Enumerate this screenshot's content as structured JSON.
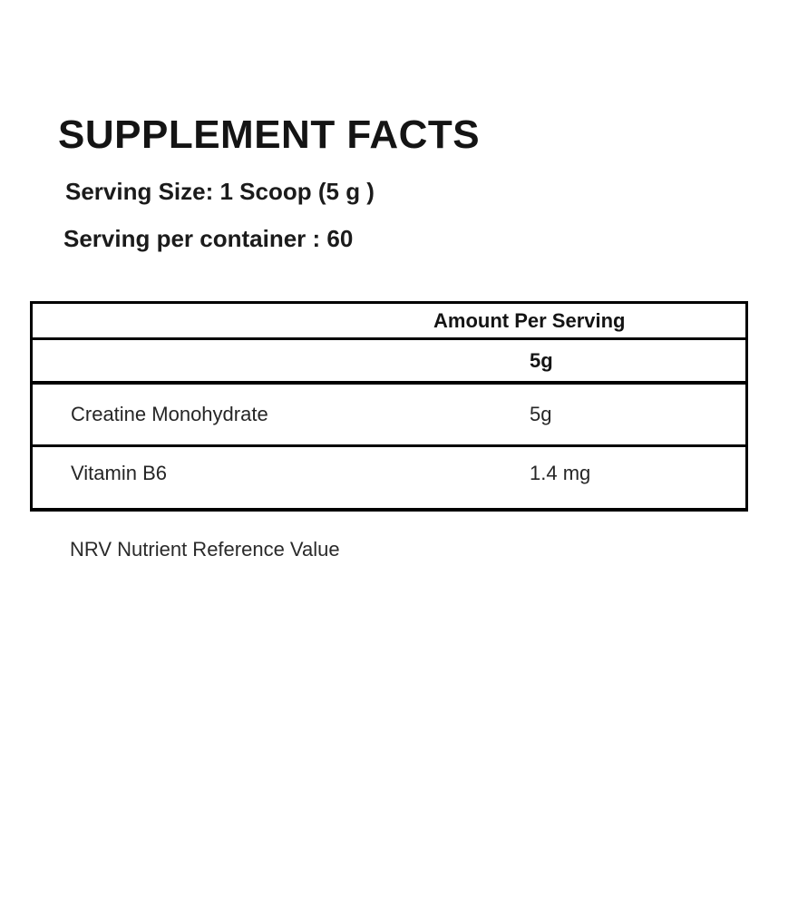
{
  "label": {
    "title": "SUPPLEMENT FACTS",
    "serving_size": "Serving Size: 1 Scoop (5 g )",
    "servings_per_container": "Serving per container : 60",
    "footnote": "NRV Nutrient Reference Value"
  },
  "table": {
    "amount_header": "Amount Per Serving",
    "serving_amount": "5g",
    "rows": [
      {
        "name": "Creatine Monohydrate",
        "amount": "5g"
      },
      {
        "name": "Vitamin B6",
        "amount": "1.4 mg"
      }
    ]
  },
  "colors": {
    "background": "#ffffff",
    "text": "#161616",
    "border": "#000000"
  }
}
